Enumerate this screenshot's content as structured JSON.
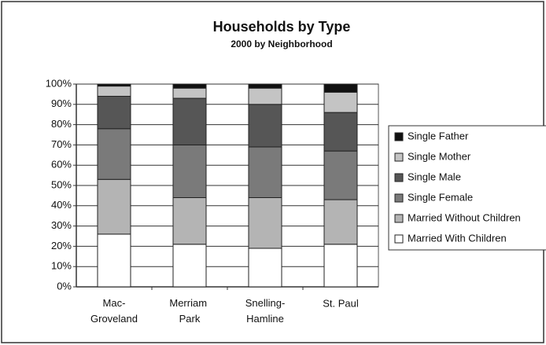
{
  "chart_data": {
    "type": "stacked_bar",
    "title": "Households by Type",
    "subtitle": "2000 by Neighborhood",
    "categories": [
      "Mac-Groveland",
      "Merriam Park",
      "Snelling-Hamline",
      "St. Paul"
    ],
    "series": [
      {
        "name": "Married With Children",
        "color": "#ffffff",
        "values": [
          26,
          21,
          19,
          21
        ]
      },
      {
        "name": "Married Without Children",
        "color": "#b4b4b4",
        "values": [
          27,
          23,
          25,
          22
        ]
      },
      {
        "name": "Single Female",
        "color": "#7a7a7a",
        "values": [
          25,
          26,
          25,
          24
        ]
      },
      {
        "name": "Single Male",
        "color": "#565656",
        "values": [
          16,
          23,
          21,
          19
        ]
      },
      {
        "name": "Single Mother",
        "color": "#c4c4c4",
        "values": [
          5,
          5,
          8,
          10
        ]
      },
      {
        "name": "Single Father",
        "color": "#111111",
        "values": [
          1,
          2,
          2,
          4
        ]
      }
    ],
    "ylim": [
      0,
      100
    ],
    "yticks": [
      {
        "value": 0,
        "label": "0%"
      },
      {
        "value": 10,
        "label": "10%"
      },
      {
        "value": 20,
        "label": "20%"
      },
      {
        "value": 30,
        "label": "30%"
      },
      {
        "value": 40,
        "label": "40%"
      },
      {
        "value": 50,
        "label": "50%"
      },
      {
        "value": 60,
        "label": "60%"
      },
      {
        "value": 70,
        "label": "70%"
      },
      {
        "value": 80,
        "label": "80%"
      },
      {
        "value": 90,
        "label": "90%"
      },
      {
        "value": 100,
        "label": "100%"
      }
    ],
    "grid": true,
    "legend": "right"
  }
}
